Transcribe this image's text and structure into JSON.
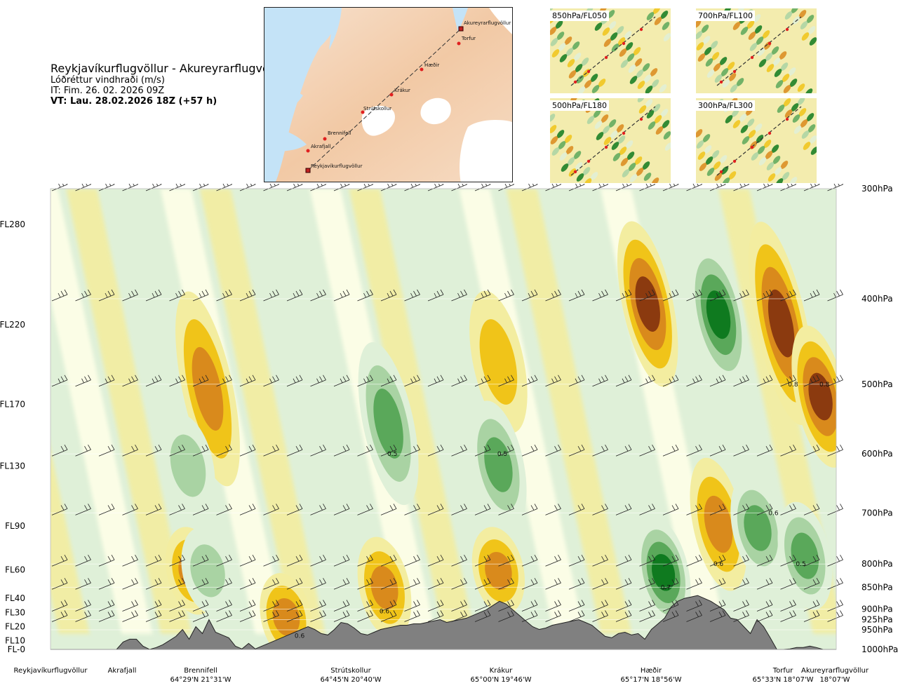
{
  "header": {
    "route": "Reykjavíkurflugvöllur - Akureyrarflugvöllur",
    "parameter": "Lóðréttur vindhraði (m/s)",
    "issue_time": "IT: Fim. 26. 02. 2026 09Z",
    "valid_time": "VT: Lau. 28.02.2026 18Z (+57 h)"
  },
  "route_map": {
    "waypoints": [
      "Akureyrarflugvöllur",
      "Torfur",
      "Hæðir",
      "Krákur",
      "Strútskollur",
      "Brennifell",
      "Akrafjall",
      "Reykjavíkurflugvöllur"
    ]
  },
  "level_maps": [
    {
      "label": "850hPa/FL050"
    },
    {
      "label": "700hPa/FL100"
    },
    {
      "label": "500hPa/FL180"
    },
    {
      "label": "300hPa/FL300"
    }
  ],
  "colors": {
    "down_strong": "#8b3a0f",
    "down_mid": "#d98a1c",
    "down_weak": "#f0c419",
    "down_faint": "#f3eda0",
    "neutral": "#ffffe8",
    "up_faint": "#dff0d8",
    "up_weak": "#a9d3a3",
    "up_mid": "#5aa85a",
    "up_strong": "#0f7a1f",
    "terrain": "#808080",
    "water": "#bfe0f5",
    "land": "#f4d3b8"
  },
  "chart_data": {
    "type": "heatmap",
    "title": "Reykjavíkurflugvöllur - Akureyrarflugvöllur",
    "subtitle": "Lóðréttur vindhraði (m/s)",
    "y_left_ticks": [
      "FL280",
      "FL220",
      "FL170",
      "FL130",
      "FL90",
      "FL60",
      "FL40",
      "FL30",
      "FL20",
      "FL10",
      "FL-0"
    ],
    "y_left_values_ft": [
      28000,
      22000,
      17000,
      13000,
      9000,
      6000,
      4000,
      3000,
      2000,
      1000,
      0
    ],
    "y_right_ticks": [
      "300hPa",
      "400hPa",
      "500hPa",
      "600hPa",
      "700hPa",
      "800hPa",
      "850hPa",
      "900hPa",
      "925hPa",
      "950hPa",
      "1000hPa"
    ],
    "y_right_values_hpa": [
      300,
      400,
      500,
      600,
      700,
      800,
      850,
      900,
      925,
      950,
      1000
    ],
    "x_range": [
      0,
      1
    ],
    "x_stations": [
      {
        "name": "Reykjavíkurflugvöllur",
        "pos": 0.0,
        "coord": ""
      },
      {
        "name": "Akrafjall",
        "pos": 0.09,
        "coord": ""
      },
      {
        "name": "Brennifell",
        "pos": 0.187,
        "coord": "64°29'N 21°31'W"
      },
      {
        "name": "Strútskollur",
        "pos": 0.378,
        "coord": "64°45'N 20°40'W"
      },
      {
        "name": "Krákur",
        "pos": 0.57,
        "coord": "65°00'N 19°46'W"
      },
      {
        "name": "Hæðir",
        "pos": 0.76,
        "coord": "65°17'N 18°56'W"
      },
      {
        "name": "Torfur",
        "pos": 0.936,
        "coord": "65°33'N 18°07'W"
      },
      {
        "name": "Akureyrarflugvöllur",
        "pos": 1.0,
        "coord": "18°07'W"
      }
    ],
    "contour_labels": [
      {
        "text": "0.8",
        "x": 0.945,
        "p_hpa": 500
      },
      {
        "text": "0.8",
        "x": 0.985,
        "p_hpa": 500
      },
      {
        "text": "0.5",
        "x": 0.435,
        "p_hpa": 600
      },
      {
        "text": "0.5",
        "x": 0.575,
        "p_hpa": 600
      },
      {
        "text": "0.6",
        "x": 0.92,
        "p_hpa": 700
      },
      {
        "text": "0.6",
        "x": 0.85,
        "p_hpa": 800
      },
      {
        "text": "0.5",
        "x": 0.955,
        "p_hpa": 800
      },
      {
        "text": "0.7",
        "x": 0.783,
        "p_hpa": 850
      },
      {
        "text": "0.6",
        "x": 0.425,
        "p_hpa": 905
      },
      {
        "text": "0.6",
        "x": 0.317,
        "p_hpa": 965
      }
    ],
    "vertical_velocity_features": [
      {
        "x": 0.2,
        "p_top": 420,
        "p_bottom": 610,
        "w": -0.6
      },
      {
        "x": 0.18,
        "p_top": 780,
        "p_bottom": 850,
        "w": -0.7
      },
      {
        "x": 0.175,
        "p_top": 580,
        "p_bottom": 660,
        "w": 0.4
      },
      {
        "x": 0.2,
        "p_top": 780,
        "p_bottom": 850,
        "w": 0.4
      },
      {
        "x": 0.3,
        "p_top": 880,
        "p_bottom": 960,
        "w": -0.6
      },
      {
        "x": 0.43,
        "p_top": 480,
        "p_bottom": 640,
        "w": 0.5
      },
      {
        "x": 0.425,
        "p_top": 800,
        "p_bottom": 905,
        "w": -0.6
      },
      {
        "x": 0.57,
        "p_top": 420,
        "p_bottom": 530,
        "w": -0.5
      },
      {
        "x": 0.57,
        "p_top": 560,
        "p_bottom": 680,
        "w": 0.5
      },
      {
        "x": 0.57,
        "p_top": 780,
        "p_bottom": 850,
        "w": -0.6
      },
      {
        "x": 0.76,
        "p_top": 350,
        "p_bottom": 470,
        "w": -0.8
      },
      {
        "x": 0.85,
        "p_top": 650,
        "p_bottom": 800,
        "w": -0.6
      },
      {
        "x": 0.78,
        "p_top": 760,
        "p_bottom": 880,
        "w": 0.7
      },
      {
        "x": 0.85,
        "p_top": 370,
        "p_bottom": 470,
        "w": 0.7
      },
      {
        "x": 0.9,
        "p_top": 680,
        "p_bottom": 780,
        "w": 0.6
      },
      {
        "x": 0.93,
        "p_top": 350,
        "p_bottom": 520,
        "w": -0.8
      },
      {
        "x": 0.98,
        "p_top": 460,
        "p_bottom": 580,
        "w": -0.8
      },
      {
        "x": 0.96,
        "p_top": 730,
        "p_bottom": 840,
        "w": 0.5
      }
    ],
    "terrain_ft": [
      0,
      0,
      0,
      0,
      0,
      0,
      0,
      0,
      150,
      200,
      300,
      900,
      1100,
      1100,
      600,
      300,
      500,
      700,
      1000,
      1300,
      1800,
      1100,
      2000,
      1500,
      2500,
      1600,
      1400,
      1200,
      600,
      400,
      800,
      400,
      600,
      800,
      1000,
      1200,
      1400,
      1600,
      1800,
      2000,
      1800,
      1500,
      1400,
      1800,
      2300,
      2200,
      1900,
      1500,
      1400,
      1600,
      1800,
      1900,
      2000,
      2100,
      2100,
      2200,
      2200,
      2300,
      2400,
      2500,
      2300,
      2400,
      2500,
      2600,
      2800,
      3000,
      3200,
      3500,
      3800,
      3600,
      3200,
      2800,
      2400,
      2000,
      1800,
      1900,
      2100,
      2200,
      2300,
      2400,
      2500,
      2300,
      2100,
      1700,
      1300,
      1200,
      1500,
      1600,
      1400,
      1500,
      1100,
      1800,
      2200,
      2600,
      3400,
      3800,
      4000,
      4100,
      4200,
      4000,
      3800,
      3500,
      3200,
      2600,
      2500,
      2000,
      1500,
      2500,
      2000,
      1200,
      300,
      200,
      400,
      500,
      500,
      600,
      500,
      300,
      100,
      0
    ]
  },
  "stations_bottom": [
    {
      "name": "Reykjavíkurflugvöllur",
      "coord": ""
    },
    {
      "name": "Akrafjall",
      "coord": ""
    },
    {
      "name": "Brennifell",
      "coord": "64°29'N 21°31'W"
    },
    {
      "name": "Strútskollur",
      "coord": "64°45'N 20°40'W"
    },
    {
      "name": "Krákur",
      "coord": "65°00'N 19°46'W"
    },
    {
      "name": "Hæðir",
      "coord": "65°17'N 18°56'W"
    },
    {
      "name": "Torfur",
      "coord": "65°33'N 18°07'W"
    },
    {
      "name": "Akureyrarflugvöllur",
      "coord": ""
    }
  ]
}
